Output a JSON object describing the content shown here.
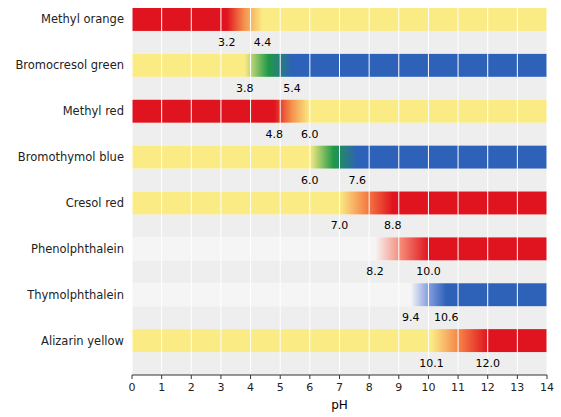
{
  "chart_data": {
    "type": "range",
    "xlabel": "pH",
    "categories": [
      "Methyl orange",
      "Bromocresol green",
      "Methyl red",
      "Bromothymol blue",
      "Cresol red",
      "Phenolphthalein",
      "Thymolphthalein",
      "Alizarin yellow"
    ],
    "values": [
      [
        3.2,
        4.4
      ],
      [
        3.8,
        5.4
      ],
      [
        4.8,
        6.0
      ],
      [
        6.0,
        7.6
      ],
      [
        7.0,
        8.8
      ],
      [
        8.2,
        10.0
      ],
      [
        9.4,
        10.6
      ],
      [
        10.1,
        12.0
      ]
    ],
    "value_labels": [
      [
        "3.2",
        "4.4"
      ],
      [
        "3.8",
        "5.4"
      ],
      [
        "4.8",
        "6.0"
      ],
      [
        "6.0",
        "7.6"
      ],
      [
        "7.0",
        "8.8"
      ],
      [
        "8.2",
        "10.0"
      ],
      [
        "9.4",
        "10.6"
      ],
      [
        "10.1",
        "12.0"
      ]
    ],
    "colors": [
      [
        "#e0141f",
        "#f5944d",
        "#faeb85"
      ],
      [
        "#faeb85",
        "#1f9947",
        "#2e61b8"
      ],
      [
        "#e0141f",
        "#f5944d",
        "#faeb85"
      ],
      [
        "#faeb85",
        "#1f9947",
        "#2e61b8"
      ],
      [
        "#faeb85",
        "#f58047",
        "#e0141f"
      ],
      [
        "#f5f5f5",
        "#f58573",
        "#e0141f"
      ],
      [
        "#f5f5f5",
        "#859ee0",
        "#2e61b8"
      ],
      [
        "#faeb85",
        "#f58047",
        "#e0141f"
      ]
    ],
    "data_labels": true,
    "xlim": [
      0,
      14
    ],
    "xticks": [
      0,
      1,
      2,
      3,
      4,
      5,
      6,
      7,
      8,
      9,
      10,
      11,
      12,
      13,
      14
    ],
    "grid": true
  }
}
